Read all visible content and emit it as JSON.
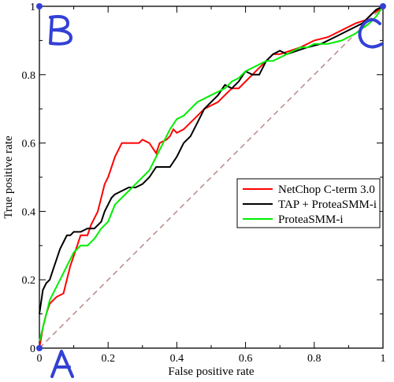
{
  "chart_data": {
    "type": "line",
    "title": "",
    "xlabel": "False positive rate",
    "ylabel": "True positive rate",
    "xlim": [
      0,
      1
    ],
    "ylim": [
      0,
      1
    ],
    "xticks": [
      "0",
      "0.2",
      "0.4",
      "0.6",
      "0.8",
      "1"
    ],
    "yticks": [
      "0",
      "0.2",
      "0.4",
      "0.6",
      "0.8",
      "1"
    ],
    "grid": false,
    "legend_position": "center-right",
    "series": [
      {
        "name": "NetChop C-term 3.0",
        "color": "#ff0000",
        "x": [
          0,
          0.01,
          0.02,
          0.03,
          0.05,
          0.07,
          0.09,
          0.1,
          0.11,
          0.12,
          0.14,
          0.15,
          0.16,
          0.17,
          0.18,
          0.19,
          0.2,
          0.21,
          0.22,
          0.23,
          0.24,
          0.25,
          0.27,
          0.29,
          0.3,
          0.32,
          0.34,
          0.35,
          0.37,
          0.38,
          0.39,
          0.4,
          0.42,
          0.44,
          0.46,
          0.48,
          0.5,
          0.52,
          0.54,
          0.56,
          0.58,
          0.6,
          0.62,
          0.64,
          0.66,
          0.68,
          0.7,
          0.73,
          0.76,
          0.8,
          0.84,
          0.88,
          0.92,
          0.95,
          0.97,
          0.99,
          1
        ],
        "y": [
          0,
          0.06,
          0.1,
          0.13,
          0.15,
          0.16,
          0.24,
          0.27,
          0.3,
          0.33,
          0.33,
          0.36,
          0.38,
          0.4,
          0.44,
          0.48,
          0.5,
          0.53,
          0.56,
          0.58,
          0.6,
          0.6,
          0.6,
          0.6,
          0.61,
          0.6,
          0.57,
          0.6,
          0.61,
          0.62,
          0.64,
          0.63,
          0.64,
          0.66,
          0.68,
          0.7,
          0.71,
          0.72,
          0.74,
          0.76,
          0.76,
          0.78,
          0.8,
          0.82,
          0.84,
          0.86,
          0.86,
          0.87,
          0.88,
          0.9,
          0.91,
          0.93,
          0.95,
          0.96,
          0.98,
          0.99,
          1
        ]
      },
      {
        "name": "TAP + ProteaSMM-i",
        "color": "#000000",
        "x": [
          0,
          0.01,
          0.02,
          0.03,
          0.04,
          0.05,
          0.06,
          0.07,
          0.08,
          0.09,
          0.1,
          0.12,
          0.14,
          0.16,
          0.18,
          0.19,
          0.2,
          0.21,
          0.22,
          0.24,
          0.26,
          0.28,
          0.3,
          0.32,
          0.34,
          0.36,
          0.38,
          0.4,
          0.42,
          0.44,
          0.46,
          0.48,
          0.5,
          0.52,
          0.54,
          0.56,
          0.58,
          0.6,
          0.62,
          0.64,
          0.66,
          0.68,
          0.7,
          0.72,
          0.75,
          0.78,
          0.82,
          0.86,
          0.9,
          0.94,
          0.96,
          0.98,
          1
        ],
        "y": [
          0.1,
          0.17,
          0.19,
          0.2,
          0.23,
          0.26,
          0.29,
          0.31,
          0.33,
          0.33,
          0.34,
          0.34,
          0.35,
          0.35,
          0.37,
          0.4,
          0.42,
          0.44,
          0.45,
          0.46,
          0.47,
          0.47,
          0.48,
          0.5,
          0.53,
          0.53,
          0.53,
          0.56,
          0.6,
          0.62,
          0.66,
          0.7,
          0.72,
          0.74,
          0.77,
          0.76,
          0.78,
          0.81,
          0.8,
          0.8,
          0.84,
          0.86,
          0.87,
          0.86,
          0.87,
          0.88,
          0.89,
          0.91,
          0.93,
          0.95,
          0.97,
          0.99,
          1
        ]
      },
      {
        "name": "ProteaSMM-i",
        "color": "#00ee00",
        "x": [
          0,
          0.01,
          0.02,
          0.03,
          0.04,
          0.06,
          0.08,
          0.1,
          0.12,
          0.14,
          0.16,
          0.18,
          0.2,
          0.22,
          0.24,
          0.26,
          0.28,
          0.3,
          0.32,
          0.34,
          0.36,
          0.38,
          0.4,
          0.42,
          0.44,
          0.46,
          0.48,
          0.5,
          0.52,
          0.54,
          0.56,
          0.58,
          0.6,
          0.62,
          0.64,
          0.66,
          0.68,
          0.7,
          0.72,
          0.74,
          0.76,
          0.78,
          0.8,
          0.84,
          0.88,
          0.92,
          0.96,
          0.98,
          1
        ],
        "y": [
          0.02,
          0.06,
          0.1,
          0.14,
          0.16,
          0.2,
          0.24,
          0.28,
          0.3,
          0.3,
          0.32,
          0.35,
          0.37,
          0.42,
          0.44,
          0.46,
          0.48,
          0.5,
          0.52,
          0.56,
          0.6,
          0.64,
          0.67,
          0.68,
          0.7,
          0.72,
          0.73,
          0.74,
          0.75,
          0.76,
          0.78,
          0.79,
          0.81,
          0.82,
          0.83,
          0.84,
          0.84,
          0.85,
          0.86,
          0.87,
          0.88,
          0.88,
          0.89,
          0.89,
          0.9,
          0.92,
          0.95,
          0.97,
          1
        ]
      },
      {
        "name": "",
        "color": "#bc8f8f",
        "dashed": true,
        "x": [
          0,
          1
        ],
        "y": [
          0,
          1
        ]
      }
    ],
    "annotations": [
      {
        "text": "B",
        "at": [
          0,
          1
        ],
        "color": "#3340d6"
      },
      {
        "text": "C",
        "at": [
          1,
          1
        ],
        "color": "#3340d6"
      },
      {
        "text": "A",
        "at": [
          0,
          0
        ],
        "color": "#3340d6"
      }
    ]
  }
}
